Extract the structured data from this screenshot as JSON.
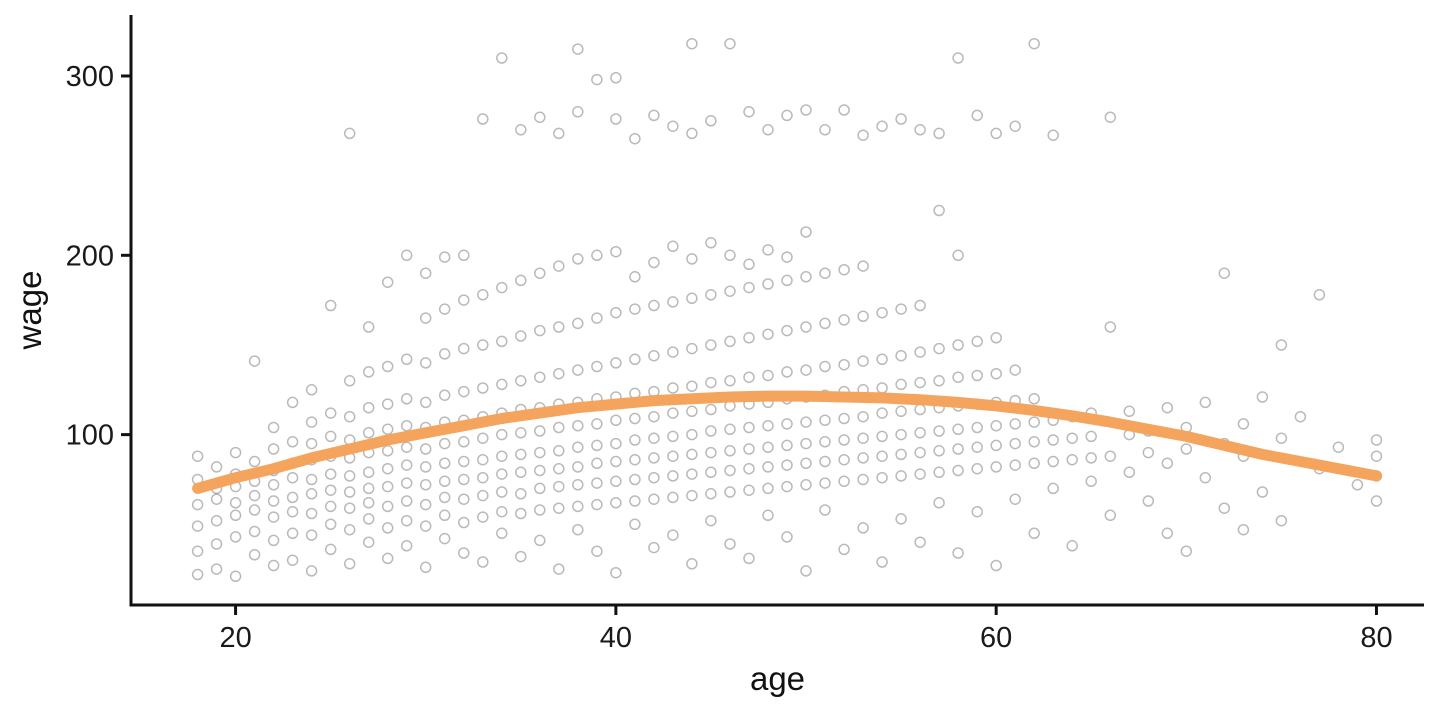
{
  "chart_data": {
    "type": "scatter",
    "title": "",
    "xlabel": "age",
    "ylabel": "wage",
    "xlim": [
      14.5,
      82.5
    ],
    "ylim": [
      5,
      334
    ],
    "x_ticks": [
      20,
      40,
      60,
      80
    ],
    "y_ticks": [
      100,
      200,
      300
    ],
    "grid": false,
    "legend": "none",
    "colors": {
      "point": "#666666",
      "smooth": "#F5A45D",
      "axis": "#111111",
      "tick_label": "#1a1a1a"
    },
    "point_style": {
      "shape": "open-circle",
      "radius": 5,
      "stroke_width": 1.5,
      "opacity": 0.45
    },
    "smooth_style": {
      "width": 11
    },
    "scatter_by_age": {
      "18": [
        22,
        35,
        49,
        61,
        75,
        88
      ],
      "19": [
        25,
        39,
        52,
        64,
        70,
        82
      ],
      "20": [
        21,
        43,
        55,
        62,
        71,
        78,
        90
      ],
      "21": [
        33,
        46,
        58,
        66,
        74,
        85,
        141
      ],
      "22": [
        27,
        41,
        54,
        63,
        72,
        80,
        92,
        104
      ],
      "23": [
        30,
        45,
        57,
        65,
        76,
        84,
        96,
        118
      ],
      "24": [
        24,
        44,
        56,
        67,
        75,
        86,
        95,
        107,
        125
      ],
      "25": [
        36,
        50,
        60,
        69,
        78,
        88,
        99,
        112,
        172
      ],
      "26": [
        28,
        47,
        59,
        68,
        77,
        87,
        97,
        110,
        130,
        268
      ],
      "27": [
        40,
        53,
        62,
        70,
        79,
        90,
        101,
        115,
        135,
        160
      ],
      "28": [
        31,
        48,
        60,
        71,
        81,
        91,
        103,
        117,
        138,
        185
      ],
      "29": [
        38,
        52,
        63,
        73,
        83,
        93,
        105,
        120,
        142,
        200
      ],
      "30": [
        26,
        49,
        61,
        72,
        82,
        92,
        104,
        118,
        140,
        165,
        190
      ],
      "31": [
        42,
        55,
        65,
        74,
        84,
        95,
        107,
        122,
        145,
        170,
        199
      ],
      "32": [
        34,
        51,
        64,
        75,
        85,
        96,
        108,
        124,
        148,
        175,
        200
      ],
      "33": [
        29,
        54,
        66,
        76,
        86,
        98,
        110,
        126,
        150,
        178,
        276
      ],
      "34": [
        45,
        57,
        68,
        78,
        88,
        100,
        112,
        128,
        152,
        182,
        310
      ],
      "35": [
        32,
        56,
        67,
        79,
        89,
        101,
        114,
        130,
        155,
        186,
        270
      ],
      "36": [
        41,
        58,
        70,
        80,
        90,
        102,
        115,
        132,
        158,
        190,
        277
      ],
      "37": [
        25,
        59,
        71,
        81,
        91,
        104,
        117,
        134,
        160,
        194,
        268
      ],
      "38": [
        47,
        60,
        72,
        82,
        93,
        105,
        118,
        136,
        162,
        198,
        280,
        315
      ],
      "39": [
        35,
        61,
        73,
        84,
        94,
        106,
        120,
        138,
        165,
        200,
        298
      ],
      "40": [
        23,
        62,
        74,
        85,
        95,
        108,
        121,
        140,
        168,
        202,
        276,
        299
      ],
      "41": [
        50,
        63,
        75,
        86,
        97,
        109,
        123,
        142,
        170,
        188,
        265
      ],
      "42": [
        37,
        64,
        76,
        87,
        98,
        110,
        124,
        144,
        172,
        196,
        278
      ],
      "43": [
        44,
        65,
        77,
        88,
        99,
        112,
        126,
        146,
        174,
        205,
        272
      ],
      "44": [
        28,
        66,
        78,
        89,
        100,
        113,
        127,
        148,
        176,
        198,
        268,
        318
      ],
      "45": [
        52,
        67,
        79,
        90,
        102,
        114,
        129,
        150,
        178,
        207,
        275
      ],
      "46": [
        39,
        68,
        80,
        91,
        103,
        116,
        130,
        152,
        180,
        200,
        318
      ],
      "47": [
        31,
        69,
        81,
        92,
        104,
        117,
        132,
        154,
        182,
        195,
        280
      ],
      "48": [
        55,
        70,
        82,
        93,
        105,
        118,
        133,
        156,
        184,
        203,
        270
      ],
      "49": [
        43,
        71,
        83,
        94,
        106,
        120,
        135,
        158,
        186,
        199,
        278
      ],
      "50": [
        24,
        72,
        84,
        95,
        107,
        121,
        136,
        160,
        188,
        213,
        281
      ],
      "51": [
        58,
        73,
        85,
        96,
        108,
        122,
        138,
        162,
        190,
        270
      ],
      "52": [
        36,
        74,
        86,
        97,
        109,
        124,
        139,
        164,
        192,
        281
      ],
      "53": [
        48,
        75,
        87,
        98,
        110,
        125,
        141,
        166,
        194,
        267
      ],
      "54": [
        29,
        76,
        88,
        99,
        112,
        126,
        142,
        168,
        272
      ],
      "55": [
        53,
        77,
        89,
        100,
        113,
        128,
        144,
        170,
        276
      ],
      "56": [
        40,
        78,
        90,
        101,
        114,
        129,
        146,
        172,
        270
      ],
      "57": [
        62,
        79,
        91,
        102,
        115,
        130,
        148,
        225,
        268
      ],
      "58": [
        34,
        80,
        92,
        103,
        116,
        132,
        150,
        200,
        310
      ],
      "59": [
        57,
        81,
        93,
        104,
        117,
        133,
        152,
        278
      ],
      "60": [
        27,
        82,
        94,
        105,
        118,
        134,
        154,
        268
      ],
      "61": [
        64,
        83,
        95,
        106,
        119,
        136,
        272
      ],
      "62": [
        45,
        84,
        96,
        107,
        120,
        318
      ],
      "63": [
        70,
        85,
        97,
        108,
        267
      ],
      "64": [
        38,
        86,
        98,
        110
      ],
      "65": [
        74,
        87,
        99,
        112
      ],
      "66": [
        55,
        88,
        160,
        277
      ],
      "67": [
        79,
        100,
        113
      ],
      "68": [
        63,
        90,
        102
      ],
      "69": [
        45,
        84,
        115
      ],
      "70": [
        35,
        92,
        104
      ],
      "71": [
        76,
        118
      ],
      "72": [
        59,
        95,
        190
      ],
      "73": [
        47,
        88,
        106
      ],
      "74": [
        68,
        121
      ],
      "75": [
        52,
        98,
        150
      ],
      "76": [
        110
      ],
      "77": [
        81,
        178
      ],
      "78": [
        93
      ],
      "79": [
        72
      ],
      "80": [
        63,
        77,
        88,
        97
      ]
    },
    "smooth_line": {
      "x": [
        18,
        20,
        22,
        24,
        26,
        28,
        30,
        32,
        34,
        36,
        38,
        40,
        42,
        44,
        46,
        48,
        50,
        52,
        54,
        56,
        58,
        60,
        62,
        64,
        66,
        68,
        70,
        72,
        74,
        76,
        78,
        80
      ],
      "y": [
        70,
        76,
        81,
        87,
        92,
        97,
        101,
        105,
        109,
        112,
        115,
        117,
        119,
        120,
        121,
        121.5,
        121.5,
        121,
        120.5,
        119.5,
        118,
        116,
        113.5,
        110.5,
        107,
        103,
        99,
        94,
        89,
        85,
        81,
        77
      ]
    }
  }
}
